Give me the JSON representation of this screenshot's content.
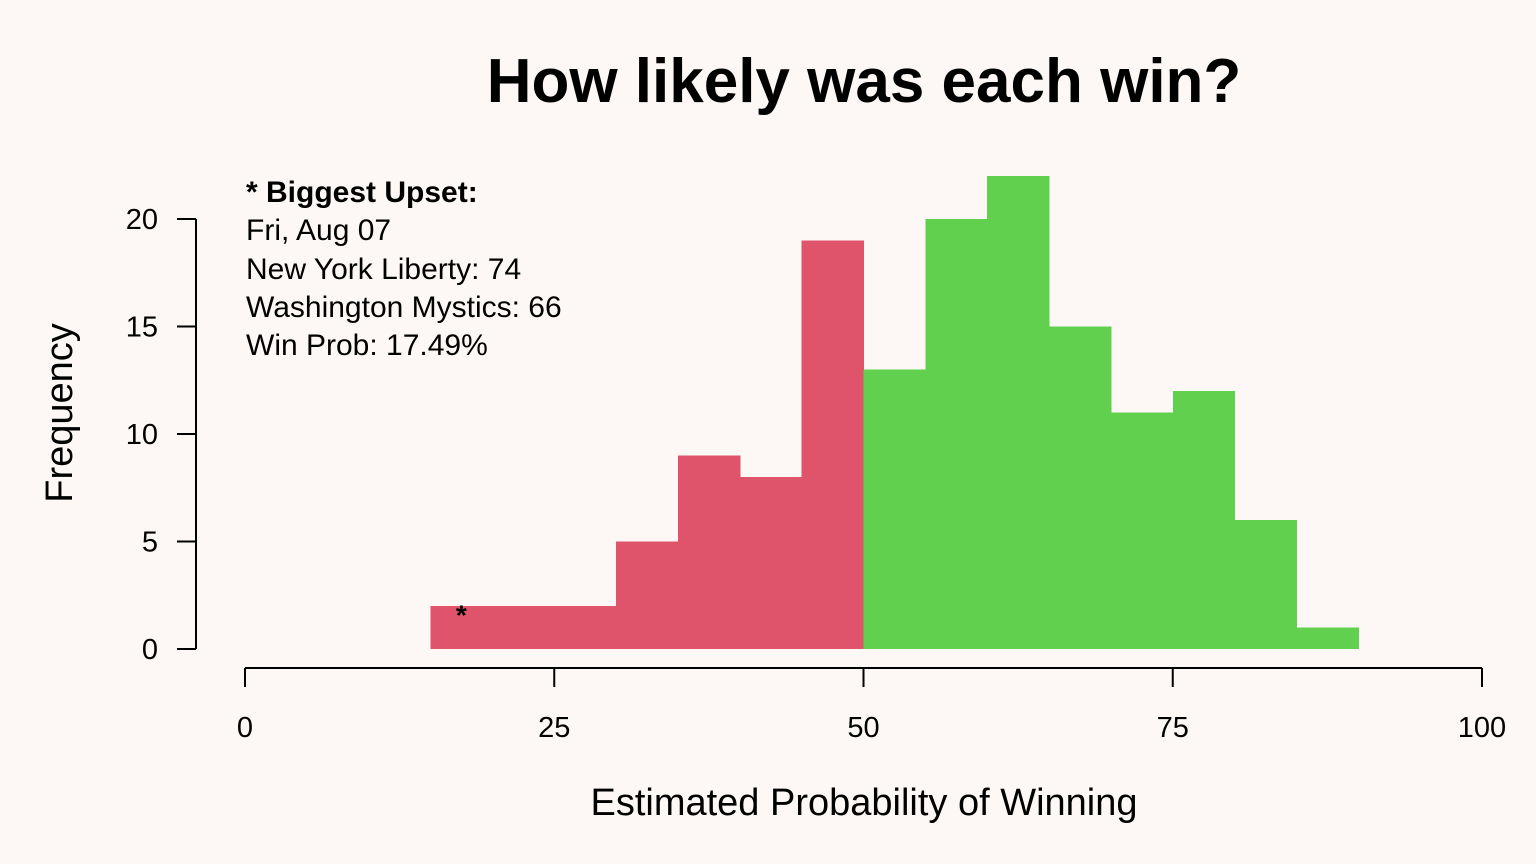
{
  "chart_data": {
    "type": "bar",
    "title": "How likely was each win?",
    "xlabel": "Estimated Probability of Winning",
    "ylabel": "Frequency",
    "xlim": [
      0,
      100
    ],
    "ylim": [
      0,
      20
    ],
    "x_ticks": [
      0,
      25,
      50,
      75,
      100
    ],
    "y_ticks": [
      0,
      5,
      10,
      15,
      20
    ],
    "grid": false,
    "bin_width": 5,
    "bins": [
      {
        "start": 15,
        "end": 20,
        "count": 2
      },
      {
        "start": 20,
        "end": 25,
        "count": 2
      },
      {
        "start": 25,
        "end": 30,
        "count": 2
      },
      {
        "start": 30,
        "end": 35,
        "count": 5
      },
      {
        "start": 35,
        "end": 40,
        "count": 9
      },
      {
        "start": 40,
        "end": 45,
        "count": 8
      },
      {
        "start": 45,
        "end": 50,
        "count": 19
      },
      {
        "start": 50,
        "end": 55,
        "count": 13
      },
      {
        "start": 55,
        "end": 60,
        "count": 20
      },
      {
        "start": 60,
        "end": 65,
        "count": 22
      },
      {
        "start": 65,
        "end": 70,
        "count": 15
      },
      {
        "start": 70,
        "end": 75,
        "count": 11
      },
      {
        "start": 75,
        "end": 80,
        "count": 12
      },
      {
        "start": 80,
        "end": 85,
        "count": 6
      },
      {
        "start": 85,
        "end": 90,
        "count": 1
      }
    ],
    "colors": {
      "below_50": "#df536b",
      "above_50": "#61d04f"
    },
    "annotation": {
      "heading": "* Biggest Upset:",
      "lines": [
        "Fri, Aug 07",
        "New York Liberty: 74",
        "Washington Mystics: 66",
        "Win Prob: 17.49%"
      ],
      "marker_symbol": "*",
      "marker_x": 17.49
    }
  }
}
